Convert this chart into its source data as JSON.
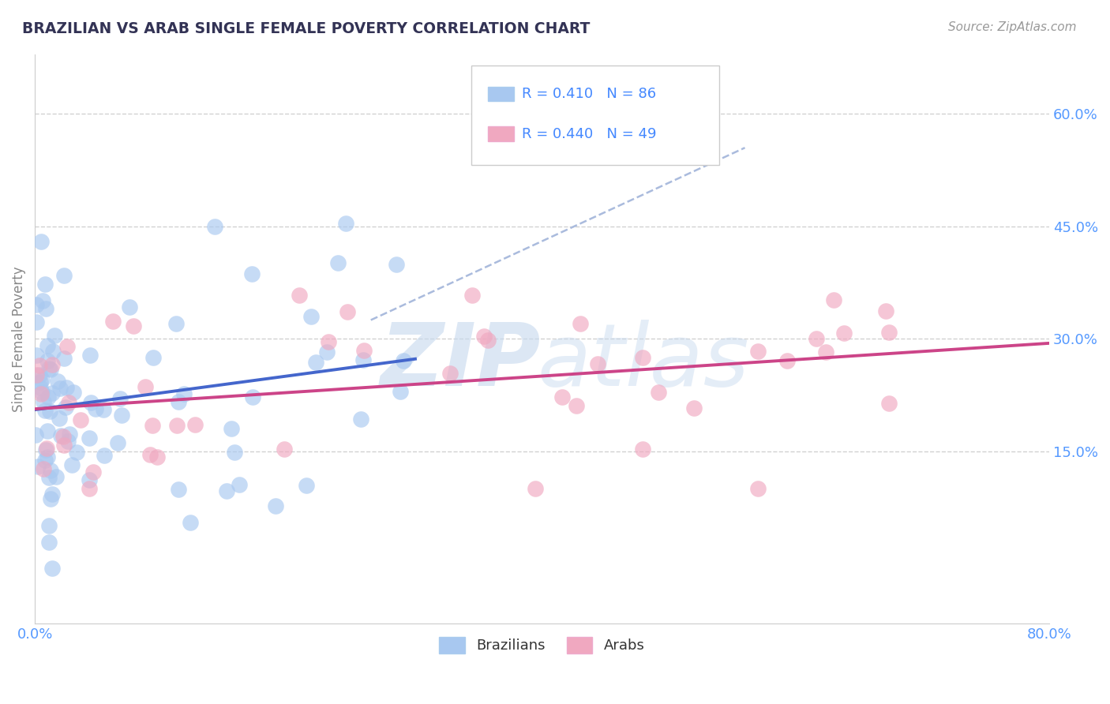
{
  "title": "BRAZILIAN VS ARAB SINGLE FEMALE POVERTY CORRELATION CHART",
  "source": "Source: ZipAtlas.com",
  "ylabel": "Single Female Poverty",
  "ytick_labels": [
    "60.0%",
    "45.0%",
    "30.0%",
    "15.0%"
  ],
  "ytick_values": [
    0.6,
    0.45,
    0.3,
    0.15
  ],
  "legend_labels": [
    "Brazilians",
    "Arabs"
  ],
  "brazil_color": "#a8c8f0",
  "arab_color": "#f0a8c0",
  "brazil_line_color": "#4466cc",
  "arab_line_color": "#cc4488",
  "dash_color": "#aabbdd",
  "xmin": 0.0,
  "xmax": 0.8,
  "ymin": -0.08,
  "ymax": 0.68,
  "brazil_R": 0.41,
  "brazil_N": 86,
  "arab_R": 0.44,
  "arab_N": 49,
  "title_color": "#333355",
  "tick_color": "#5599ff",
  "legend_text_color": "#4488ff",
  "watermark_color": "#d0dff0"
}
